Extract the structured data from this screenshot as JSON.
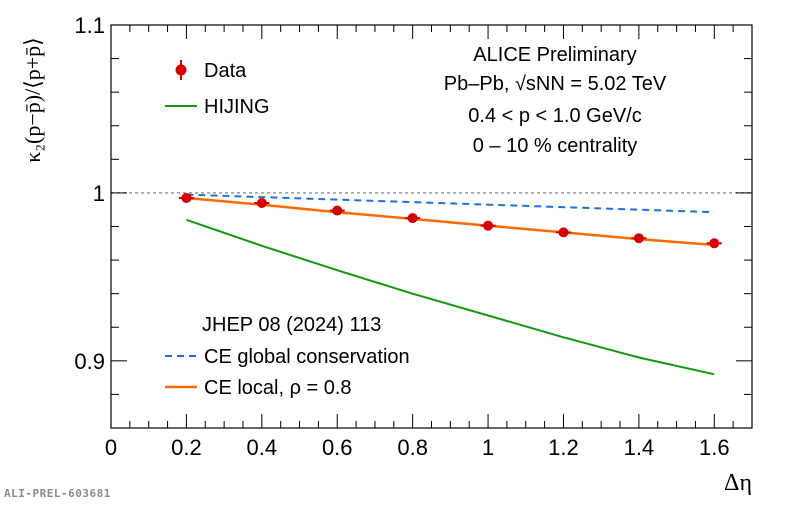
{
  "chart_data": {
    "type": "scatter",
    "xlabel": "Δη",
    "ylabel": "κ₂(p−p̄)/⟨p+p̄⟩",
    "xlim": [
      0,
      1.7
    ],
    "ylim": [
      0.86,
      1.1
    ],
    "x_ticks": [
      "0",
      "0.2",
      "0.4",
      "0.6",
      "0.8",
      "1",
      "1.2",
      "1.4",
      "1.6"
    ],
    "y_ticks": [
      "0.9",
      "1",
      "1.1"
    ],
    "reference_line": {
      "y": 1,
      "style": "dotted",
      "color": "#999999"
    },
    "series": [
      {
        "name": "Data",
        "kind": "points",
        "color": "#d40000",
        "x": [
          0.2,
          0.4,
          0.6,
          0.8,
          1.0,
          1.2,
          1.4,
          1.6
        ],
        "y": [
          0.997,
          0.994,
          0.9895,
          0.985,
          0.9805,
          0.9765,
          0.973,
          0.97
        ],
        "xerr": 0.02,
        "yerr": 0.0015
      },
      {
        "name": "HIJING",
        "kind": "line",
        "color": "#119911",
        "x": [
          0.2,
          0.4,
          0.6,
          0.8,
          1.0,
          1.2,
          1.4,
          1.6
        ],
        "y": [
          0.984,
          0.9685,
          0.954,
          0.94,
          0.927,
          0.914,
          0.902,
          0.892
        ]
      },
      {
        "name": "CE global conservation",
        "kind": "dashed-line",
        "color": "#1f6fd9",
        "x": [
          0.2,
          1.6
        ],
        "y": [
          0.999,
          0.9885
        ]
      },
      {
        "name": "CE local, ρ = 0.8",
        "kind": "line",
        "color": "#ff6a00",
        "x": [
          0.2,
          0.4,
          0.6,
          0.8,
          1.0,
          1.2,
          1.4,
          1.6
        ],
        "y": [
          0.997,
          0.993,
          0.9885,
          0.9845,
          0.9805,
          0.9765,
          0.9725,
          0.969
        ]
      }
    ],
    "legend": [
      {
        "label": "Data",
        "series": 0
      },
      {
        "label": "HIJING",
        "series": 1
      }
    ],
    "legend_bottom": {
      "header": "JHEP 08 (2024) 113",
      "items": [
        {
          "label": "CE global conservation",
          "series": 2
        },
        {
          "label": "CE local, ρ = 0.8",
          "series": 3
        }
      ]
    },
    "annotations": [
      "ALICE Preliminary",
      "Pb–Pb, √sNN = 5.02 TeV",
      "0.4 < p < 1.0 GeV/c",
      "0 – 10 % centrality"
    ]
  },
  "footer": "ALI-PREL-603681"
}
